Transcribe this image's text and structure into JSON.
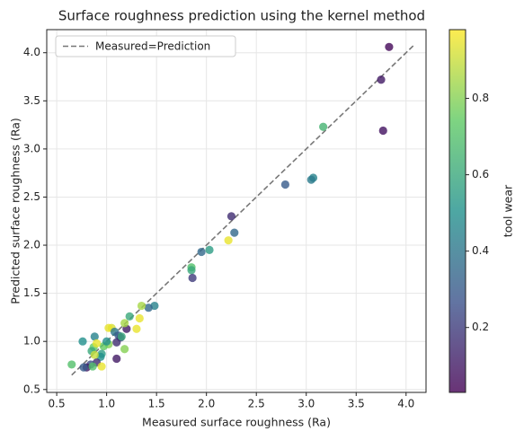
{
  "chart_data": {
    "type": "scatter",
    "title": "Surface roughness prediction using the kernel method",
    "x_label": "Measured surface roughness (Ra)",
    "y_label": "Predicted surface roughness (Ra)",
    "colorbar_label": "tool wear",
    "colormap": "viridis",
    "grid": true,
    "legend_position": "upper left",
    "xlim": [
      0.4,
      4.2
    ],
    "ylim": [
      0.47,
      4.24
    ],
    "xticks": [
      0.5,
      {
        "value": 1,
        "label": "1.0"
      },
      1.5,
      {
        "value": 2,
        "label": "2.0"
      },
      2.5,
      {
        "value": 3,
        "label": "3.0"
      },
      3.5,
      {
        "value": 4,
        "label": "4.0"
      }
    ],
    "yticks": [
      0.5,
      {
        "value": 1,
        "label": "1.0"
      },
      1.5,
      {
        "value": 2,
        "label": "2.0"
      },
      2.5,
      {
        "value": 3,
        "label": "3.0"
      },
      3.5,
      {
        "value": 4,
        "label": "4.0"
      }
    ],
    "clim": [
      0.03,
      0.98
    ],
    "cticks": [
      0.2,
      0.4,
      0.6,
      0.8
    ],
    "reference_line": {
      "name": "Measured=Prediction",
      "color": "#777777",
      "x": [
        0.65,
        4.08
      ],
      "y": [
        0.65,
        4.08
      ]
    },
    "x": [
      3.83,
      3.75,
      3.77,
      3.17,
      3.07,
      3.05,
      2.79,
      2.25,
      2.28,
      2.22,
      2.03,
      1.95,
      1.85,
      1.85,
      1.86,
      1.48,
      1.42,
      1.35,
      1.33,
      1.3,
      1.23,
      1.2,
      1.18,
      1.05,
      1.02,
      1.08,
      1.12,
      1.14,
      1.1,
      1.15,
      1.02,
      0.97,
      0.95,
      0.94,
      0.88,
      0.76,
      0.87,
      0.85,
      0.88,
      0.9,
      0.84,
      0.8,
      0.77,
      0.65,
      0.95,
      0.86,
      1.1,
      1.18,
      0.9,
      1.0
    ],
    "y": [
      4.06,
      3.72,
      3.19,
      3.23,
      2.7,
      2.68,
      2.63,
      2.3,
      2.13,
      2.05,
      1.95,
      1.93,
      1.77,
      1.74,
      1.66,
      1.37,
      1.35,
      1.37,
      1.24,
      1.13,
      1.26,
      1.13,
      1.19,
      1.14,
      1.14,
      1.1,
      1.06,
      1.04,
      0.99,
      1.05,
      0.97,
      0.95,
      0.87,
      0.84,
      1.05,
      1.0,
      0.94,
      0.9,
      0.86,
      0.78,
      0.76,
      0.73,
      0.73,
      0.76,
      0.74,
      0.74,
      0.82,
      0.92,
      0.98,
      1.0
    ],
    "c": [
      0.05,
      0.1,
      0.08,
      0.65,
      0.45,
      0.42,
      0.3,
      0.15,
      0.35,
      0.95,
      0.55,
      0.35,
      0.7,
      0.6,
      0.2,
      0.45,
      0.35,
      0.85,
      0.95,
      0.95,
      0.6,
      0.1,
      0.85,
      0.92,
      0.95,
      0.4,
      0.3,
      0.2,
      0.15,
      0.6,
      0.8,
      0.75,
      0.55,
      0.5,
      0.45,
      0.5,
      0.75,
      0.6,
      0.9,
      0.15,
      0.25,
      0.1,
      0.3,
      0.7,
      0.95,
      0.7,
      0.1,
      0.8,
      0.95,
      0.5
    ]
  }
}
